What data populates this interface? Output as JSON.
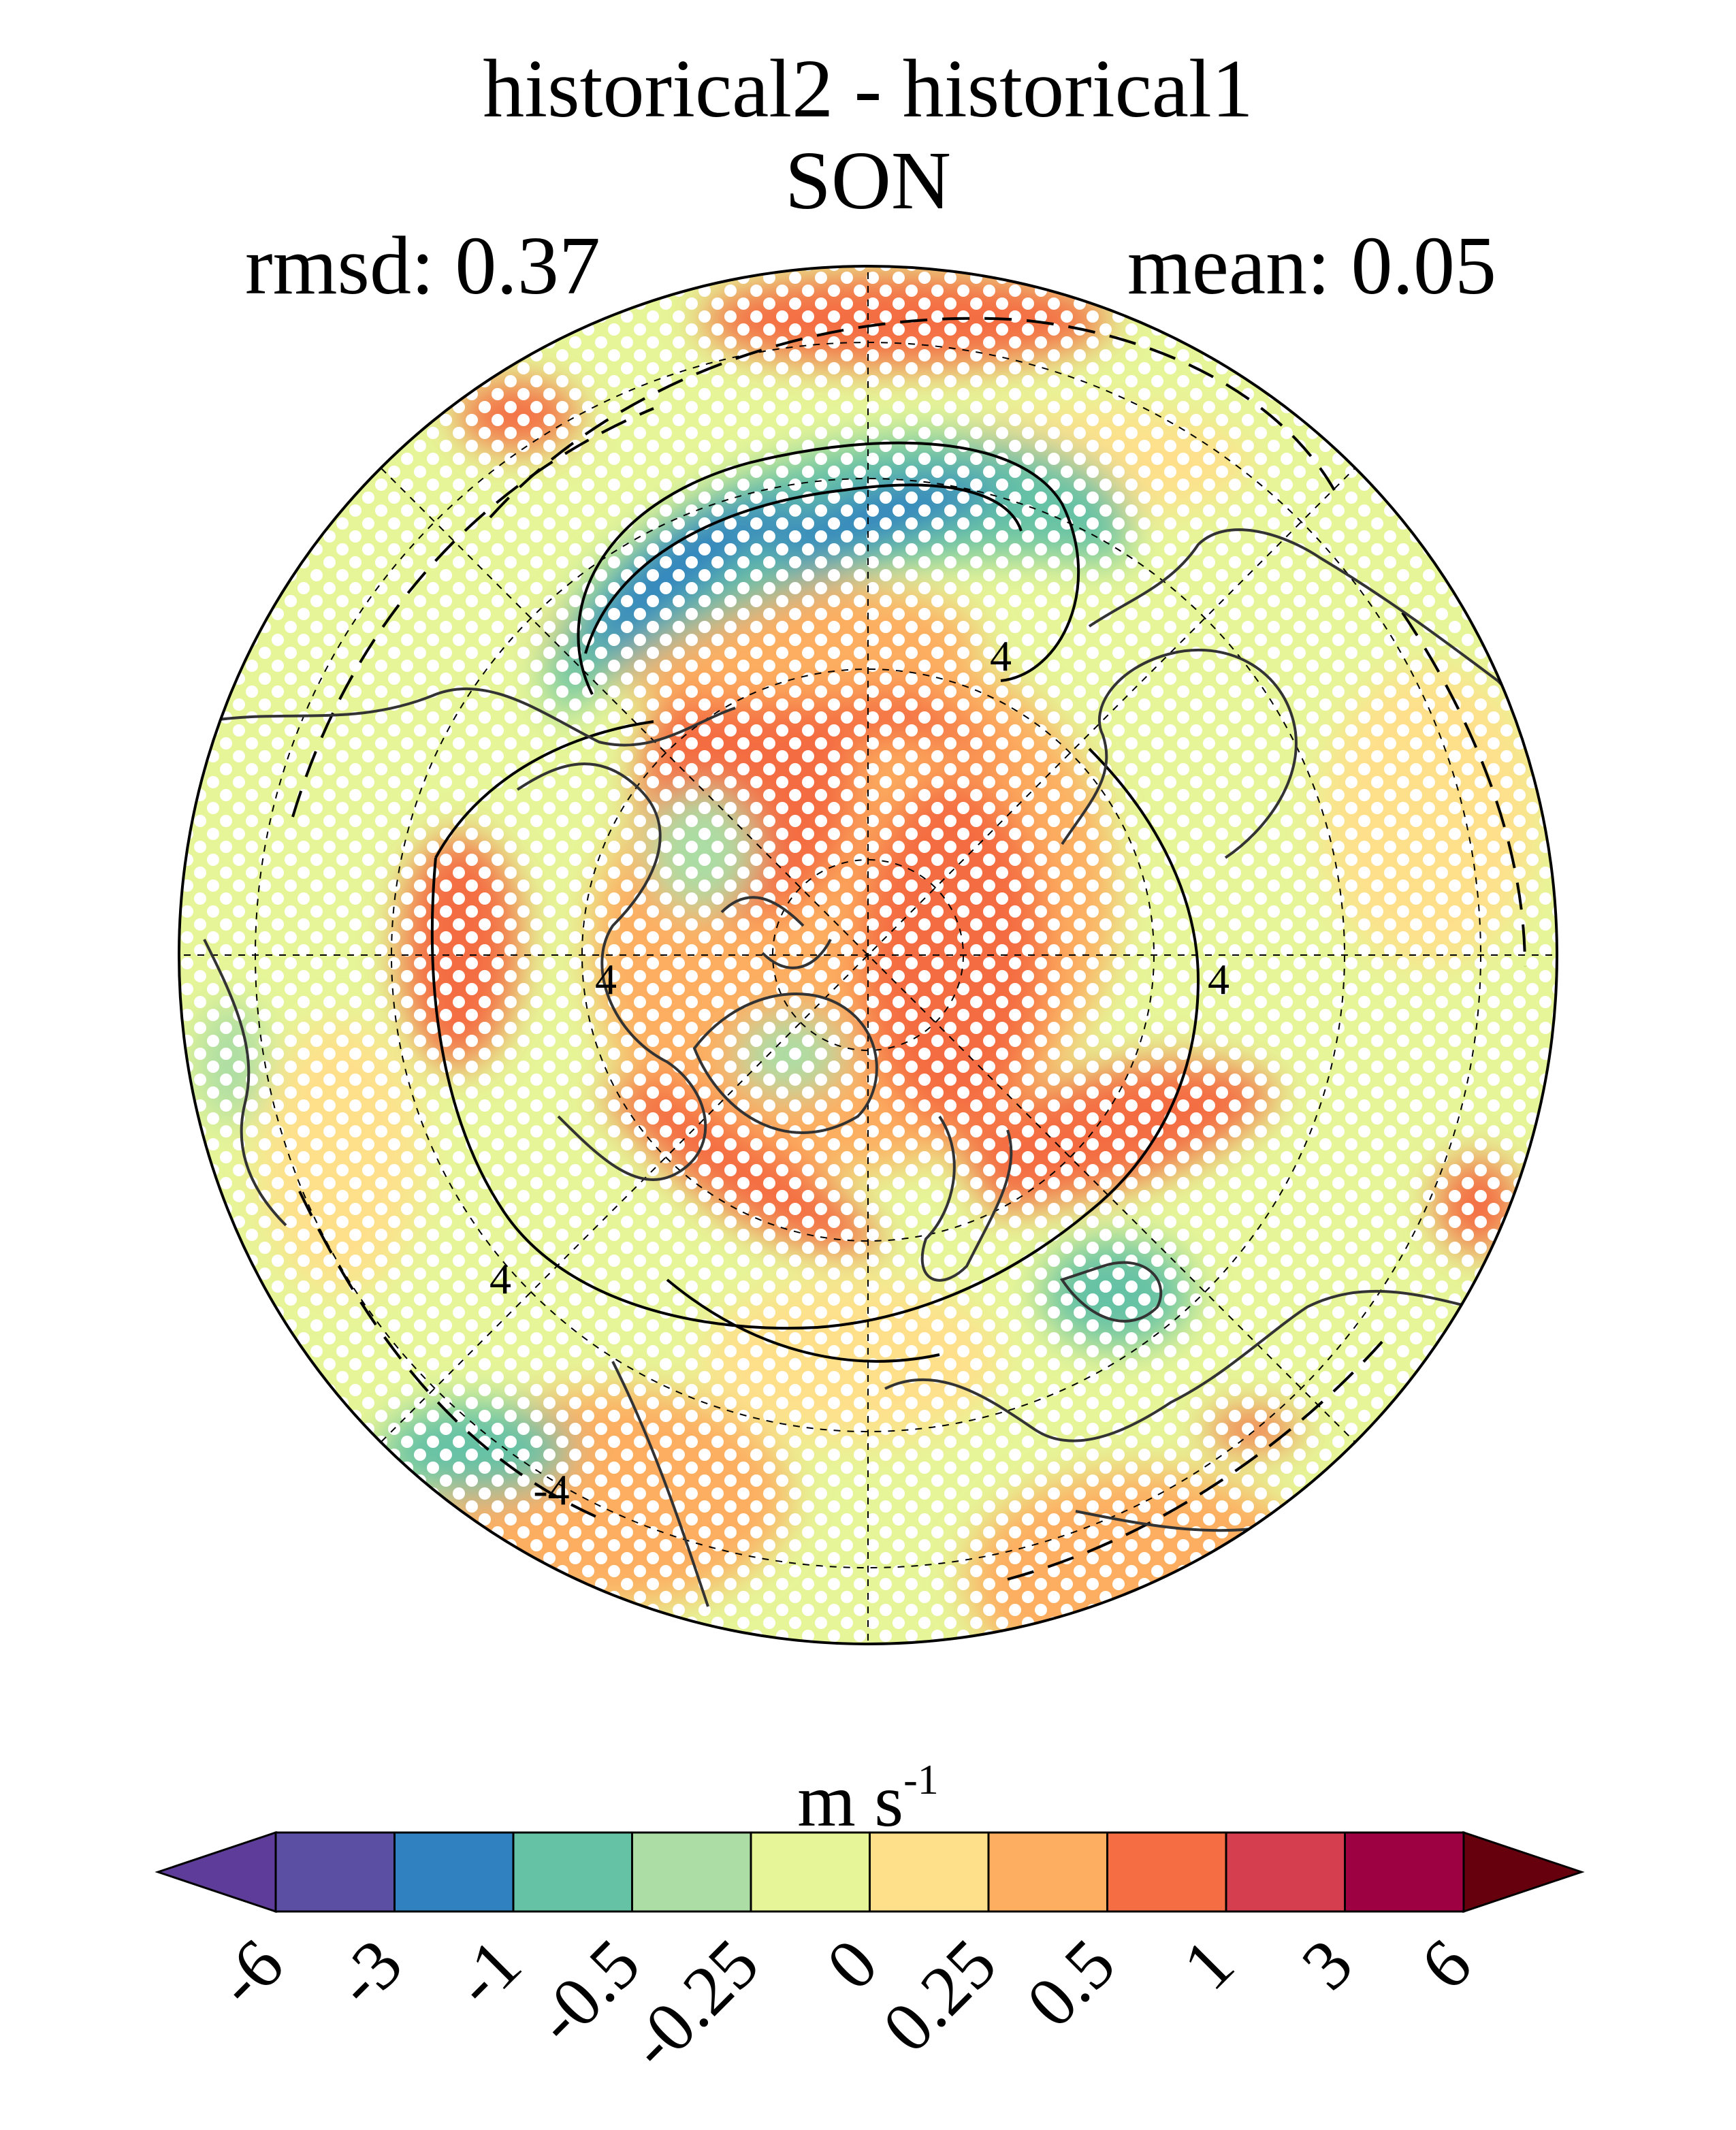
{
  "header": {
    "title_line1": "historical2 - historical1",
    "title_line2": "SON",
    "rmsd_label": "rmsd: 0.37",
    "mean_label": "mean: 0.05"
  },
  "map": {
    "projection": "north-polar-stereographic",
    "gridlines": "dashed",
    "stippling": "white-dots",
    "contour_label": "4",
    "negative_contour_label": "-4"
  },
  "colorbar": {
    "unit_base": "m s",
    "unit_exp": "-1",
    "tick_labels": [
      "-6",
      "-3",
      "-1",
      "-0.5",
      "-0.25",
      "0",
      "0.25",
      "0.5",
      "1",
      "3",
      "6"
    ],
    "colors": [
      "#5e3c99",
      "#5b4fa3",
      "#2f82bf",
      "#66c2a5",
      "#abdda4",
      "#e6f598",
      "#fee08b",
      "#fdae61",
      "#f46d43",
      "#d53e4f",
      "#9e0142",
      "#67000d"
    ]
  }
}
